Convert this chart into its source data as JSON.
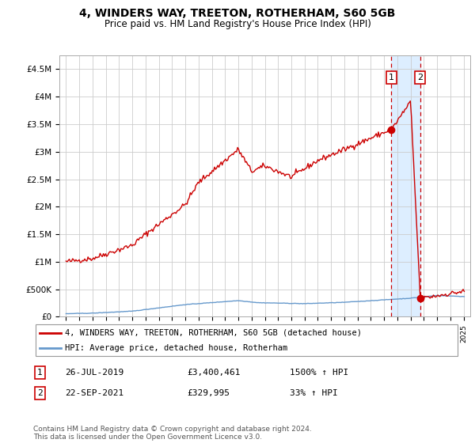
{
  "title": "4, WINDERS WAY, TREETON, ROTHERHAM, S60 5GB",
  "subtitle": "Price paid vs. HM Land Registry's House Price Index (HPI)",
  "legend_label1": "4, WINDERS WAY, TREETON, ROTHERHAM, S60 5GB (detached house)",
  "legend_label2": "HPI: Average price, detached house, Rotherham",
  "annotation1_date": "26-JUL-2019",
  "annotation1_price": "£3,400,461",
  "annotation1_hpi": "1500% ↑ HPI",
  "annotation1_year": 2019.55,
  "annotation1_value": 3400461,
  "annotation2_date": "22-SEP-2021",
  "annotation2_price": "£329,995",
  "annotation2_hpi": "33% ↑ HPI",
  "annotation2_year": 2021.72,
  "annotation2_value": 329995,
  "footnote": "Contains HM Land Registry data © Crown copyright and database right 2024.\nThis data is licensed under the Open Government Licence v3.0.",
  "ylim": [
    0,
    4750000
  ],
  "yticks": [
    0,
    500000,
    1000000,
    1500000,
    2000000,
    2500000,
    3000000,
    3500000,
    4000000,
    4500000
  ],
  "ytick_labels": [
    "£0",
    "£500K",
    "£1M",
    "£1.5M",
    "£2M",
    "£2.5M",
    "£3M",
    "£3.5M",
    "£4M",
    "£4.5M"
  ],
  "xlim": [
    1994.5,
    2025.5
  ],
  "red_line_color": "#cc0000",
  "blue_line_color": "#6699cc",
  "grid_color": "#cccccc",
  "bg_color": "#ffffff",
  "highlight_bg": "#ddeeff",
  "box_color": "#cc0000"
}
